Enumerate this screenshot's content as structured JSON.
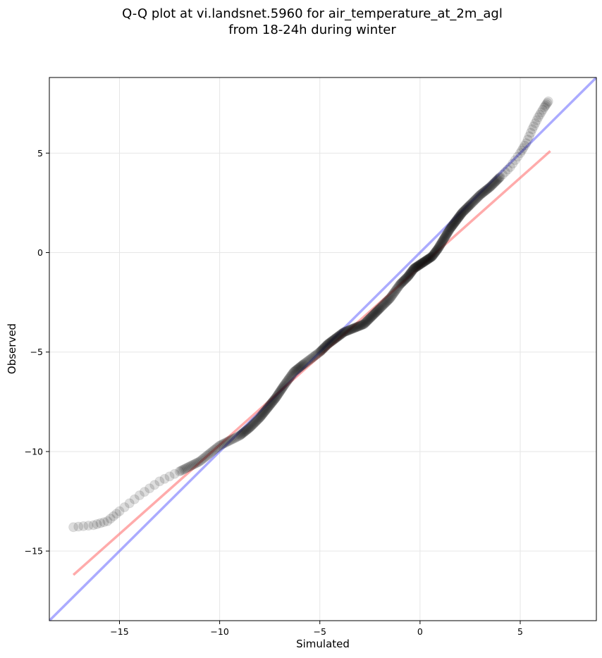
{
  "title_line1": "Q-Q plot at vi.landsnet.5960 for air_temperature_at_2m_agl",
  "title_line2": "from 18-24h during winter",
  "chart_data": {
    "type": "scatter",
    "title": "Q-Q plot at vi.landsnet.5960 for air_temperature_at_2m_agl\nfrom 18-24h during winter",
    "xlabel": "Simulated",
    "ylabel": "Observed",
    "xlim": [
      -18.5,
      8.8
    ],
    "ylim": [
      -18.5,
      8.8
    ],
    "grid": true,
    "xticks": [
      -15,
      -10,
      -5,
      0,
      5
    ],
    "yticks": [
      -15,
      -10,
      -5,
      0,
      5
    ],
    "xtick_labels": [
      "−15",
      "−10",
      "−5",
      "0",
      "5"
    ],
    "ytick_labels": [
      "−15",
      "−10",
      "−5",
      "0",
      "5"
    ],
    "identity_line": {
      "x": [
        -18.5,
        8.8
      ],
      "y": [
        -18.5,
        8.8
      ],
      "color": "#6666ff"
    },
    "fit_line": {
      "x": [
        -17.3,
        6.5
      ],
      "y": [
        -16.2,
        5.1
      ],
      "color": "#ff6666"
    },
    "quantile_curve": {
      "x": [
        -17.3,
        -16.3,
        -15.6,
        -15.0,
        -14.0,
        -13.0,
        -12.0,
        -11.0,
        -10.0,
        -9.0,
        -8.5,
        -8.0,
        -7.6,
        -7.2,
        -6.8,
        -6.3,
        -5.8,
        -5.0,
        -4.6,
        -4.2,
        -3.8,
        -3.3,
        -2.8,
        -2.4,
        -2.0,
        -1.5,
        -1.0,
        -0.6,
        -0.3,
        0.0,
        0.3,
        0.6,
        0.9,
        1.2,
        1.5,
        1.8,
        2.1,
        2.5,
        3.0,
        3.5,
        4.0,
        4.5,
        5.0,
        5.3,
        5.6,
        5.9,
        6.2,
        6.4
      ],
      "y": [
        -13.8,
        -13.7,
        -13.5,
        -13.0,
        -12.2,
        -11.5,
        -11.0,
        -10.5,
        -9.7,
        -9.2,
        -8.8,
        -8.3,
        -7.8,
        -7.3,
        -6.7,
        -6.0,
        -5.6,
        -5.0,
        -4.6,
        -4.3,
        -4.0,
        -3.8,
        -3.6,
        -3.2,
        -2.8,
        -2.3,
        -1.6,
        -1.2,
        -0.8,
        -0.6,
        -0.4,
        -0.2,
        0.2,
        0.7,
        1.2,
        1.6,
        2.0,
        2.4,
        2.9,
        3.3,
        3.8,
        4.3,
        5.0,
        5.5,
        6.2,
        6.8,
        7.3,
        7.6
      ]
    }
  }
}
